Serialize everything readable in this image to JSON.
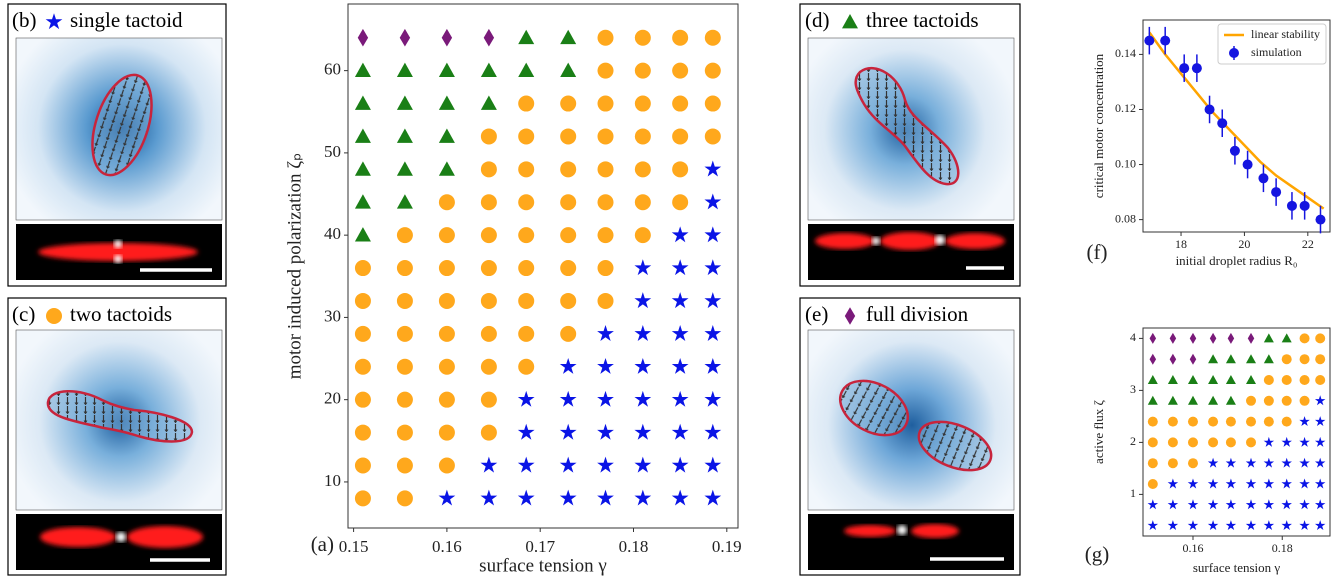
{
  "chart_data": [
    {
      "type": "phase",
      "panel_label": "(a)",
      "x_label": "surface tension γ",
      "y_label": "motor induced polarization ζₚ",
      "xlim": [
        0.1494,
        0.1912
      ],
      "ylim": [
        4.4,
        68.1
      ],
      "xticks": [
        0.15,
        0.16,
        0.17,
        0.18,
        0.19
      ],
      "yticks": [
        10,
        20,
        30,
        40,
        50,
        60
      ],
      "series": [
        {
          "name": "single tactoid",
          "color": "#0a14e6",
          "marker": "star",
          "x": [
            0.1885,
            0.1885,
            0.185,
            0.1885,
            0.181,
            0.185,
            0.1885,
            0.181,
            0.185,
            0.1885,
            0.177,
            0.181,
            0.185,
            0.1885,
            0.173,
            0.177,
            0.181,
            0.185,
            0.1885,
            0.1685,
            0.173,
            0.177,
            0.181,
            0.185,
            0.1885,
            0.1685,
            0.173,
            0.177,
            0.181,
            0.185,
            0.1885,
            0.1645,
            0.1685,
            0.173,
            0.177,
            0.181,
            0.185,
            0.1885,
            0.16,
            0.1645,
            0.1685,
            0.173,
            0.177,
            0.181,
            0.185,
            0.1885
          ],
          "y": [
            48,
            44,
            40,
            40,
            36,
            36,
            36,
            32,
            32,
            32,
            28,
            28,
            28,
            28,
            24,
            24,
            24,
            24,
            24,
            20,
            20,
            20,
            20,
            20,
            20,
            16,
            16,
            16,
            16,
            16,
            16,
            12,
            12,
            12,
            12,
            12,
            12,
            12,
            8,
            8,
            8,
            8,
            8,
            8,
            8,
            8
          ]
        },
        {
          "name": "two tactoids",
          "color": "#ffa81c",
          "marker": "circle",
          "x": [
            0.177,
            0.181,
            0.185,
            0.1885,
            0.177,
            0.181,
            0.185,
            0.1885,
            0.1685,
            0.173,
            0.177,
            0.181,
            0.185,
            0.1885,
            0.1645,
            0.1685,
            0.173,
            0.177,
            0.181,
            0.185,
            0.1885,
            0.1645,
            0.1685,
            0.173,
            0.177,
            0.181,
            0.185,
            0.16,
            0.1645,
            0.1685,
            0.173,
            0.177,
            0.181,
            0.185,
            0.1555,
            0.16,
            0.1645,
            0.1685,
            0.173,
            0.177,
            0.181,
            0.151,
            0.1555,
            0.16,
            0.1645,
            0.1685,
            0.173,
            0.177,
            0.151,
            0.1555,
            0.16,
            0.1645,
            0.1685,
            0.173,
            0.177,
            0.151,
            0.1555,
            0.16,
            0.1645,
            0.1685,
            0.173,
            0.151,
            0.1555,
            0.16,
            0.1645,
            0.1685,
            0.151,
            0.1555,
            0.16,
            0.1645,
            0.151,
            0.1555,
            0.16,
            0.1645,
            0.151,
            0.1555,
            0.16,
            0.151,
            0.1555
          ],
          "y": [
            64,
            64,
            64,
            64,
            60,
            60,
            60,
            60,
            56,
            56,
            56,
            56,
            56,
            56,
            52,
            52,
            52,
            52,
            52,
            52,
            52,
            48,
            48,
            48,
            48,
            48,
            48,
            44,
            44,
            44,
            44,
            44,
            44,
            44,
            40,
            40,
            40,
            40,
            40,
            40,
            40,
            36,
            36,
            36,
            36,
            36,
            36,
            36,
            32,
            32,
            32,
            32,
            32,
            32,
            32,
            28,
            28,
            28,
            28,
            28,
            28,
            24,
            24,
            24,
            24,
            24,
            20,
            20,
            20,
            20,
            16,
            16,
            16,
            16,
            12,
            12,
            12,
            8,
            8
          ]
        },
        {
          "name": "three tactoids",
          "color": "#1a7f16",
          "marker": "triangle",
          "x": [
            0.1685,
            0.173,
            0.151,
            0.1555,
            0.16,
            0.1645,
            0.1685,
            0.173,
            0.151,
            0.1555,
            0.16,
            0.1645,
            0.151,
            0.1555,
            0.16,
            0.151,
            0.1555,
            0.16,
            0.151,
            0.1555,
            0.151
          ],
          "y": [
            64,
            64,
            60,
            60,
            60,
            60,
            60,
            60,
            56,
            56,
            56,
            56,
            52,
            52,
            52,
            48,
            48,
            48,
            44,
            44,
            40
          ]
        },
        {
          "name": "full division",
          "color": "#7a1a7a",
          "marker": "diamond",
          "x": [
            0.151,
            0.1555,
            0.16,
            0.1645
          ],
          "y": [
            64,
            64,
            64,
            64
          ]
        }
      ]
    },
    {
      "type": "line_errorbar",
      "panel_label": "(f)",
      "x_label": "initial droplet radius R₀",
      "y_label": "critical motor concentration",
      "xlim": [
        16.8,
        22.7
      ],
      "ylim": [
        0.0755,
        0.1525
      ],
      "xticks": [
        18,
        20,
        22
      ],
      "yticks": [
        0.08,
        {
          "value": 0.1,
          "label": "0.10"
        },
        0.12,
        0.14
      ],
      "legend": "upper right",
      "series": [
        {
          "name": "linear stability",
          "color": "#ffa500",
          "x": [
            17,
            17.5,
            18,
            18.5,
            19,
            19.5,
            20,
            20.5,
            21,
            21.5,
            22,
            22.5
          ],
          "values": [
            0.148,
            0.14,
            0.133,
            0.126,
            0.119,
            0.113,
            0.107,
            0.101,
            0.096,
            0.092,
            0.088,
            0.084
          ]
        },
        {
          "name": "simulation",
          "color": "#1515e0",
          "x": [
            17.0,
            17.5,
            18.1,
            18.5,
            18.9,
            19.3,
            19.7,
            20.1,
            20.6,
            21.0,
            21.5,
            21.9,
            22.4
          ],
          "values": [
            0.145,
            0.145,
            0.135,
            0.135,
            0.12,
            0.115,
            0.105,
            0.1,
            0.095,
            0.09,
            0.085,
            0.085,
            0.08
          ],
          "errors": [
            0.005,
            0.005,
            0.005,
            0.005,
            0.005,
            0.005,
            0.005,
            0.005,
            0.005,
            0.005,
            0.005,
            0.005,
            0.005
          ]
        }
      ]
    },
    {
      "type": "phase",
      "panel_label": "(g)",
      "x_label": "surface tension γ",
      "y_label": "active flux ζ",
      "xlim": [
        0.1488,
        0.1907
      ],
      "ylim": [
        0.2,
        4.2
      ],
      "xticks": [
        0.16,
        0.18
      ],
      "yticks": [
        1,
        2,
        3,
        4
      ],
      "series": [
        {
          "color": "#0a14e6",
          "marker": "star",
          "x": [
            0.1885,
            0.185,
            0.1885,
            0.177,
            0.181,
            0.185,
            0.1885,
            0.1645,
            0.1685,
            0.173,
            0.177,
            0.181,
            0.185,
            0.1885,
            0.1555,
            0.16,
            0.1645,
            0.1685,
            0.173,
            0.177,
            0.181,
            0.185,
            0.1885,
            0.151,
            0.1555,
            0.16,
            0.1645,
            0.1685,
            0.173,
            0.177,
            0.181,
            0.185,
            0.1885,
            0.151,
            0.1555,
            0.16,
            0.1645,
            0.1685,
            0.173,
            0.177,
            0.181,
            0.185,
            0.1885
          ],
          "y": [
            2.8,
            2.4,
            2.4,
            2,
            2,
            2,
            2,
            1.6,
            1.6,
            1.6,
            1.6,
            1.6,
            1.6,
            1.6,
            1.2,
            1.2,
            1.2,
            1.2,
            1.2,
            1.2,
            1.2,
            1.2,
            1.2,
            0.8,
            0.8,
            0.8,
            0.8,
            0.8,
            0.8,
            0.8,
            0.8,
            0.8,
            0.8,
            0.4,
            0.4,
            0.4,
            0.4,
            0.4,
            0.4,
            0.4,
            0.4,
            0.4,
            0.4
          ]
        },
        {
          "color": "#ffa81c",
          "marker": "circle",
          "x": [
            0.185,
            0.1885,
            0.181,
            0.185,
            0.1885,
            0.177,
            0.181,
            0.185,
            0.1885,
            0.173,
            0.177,
            0.181,
            0.185,
            0.151,
            0.1555,
            0.16,
            0.1645,
            0.1685,
            0.173,
            0.177,
            0.181,
            0.151,
            0.1555,
            0.16,
            0.1645,
            0.1685,
            0.173,
            0.151,
            0.1555,
            0.16,
            0.151
          ],
          "y": [
            4,
            4,
            3.6,
            3.6,
            3.6,
            3.2,
            3.2,
            3.2,
            3.2,
            2.8,
            2.8,
            2.8,
            2.8,
            2.4,
            2.4,
            2.4,
            2.4,
            2.4,
            2.4,
            2.4,
            2.4,
            2,
            2,
            2,
            2,
            2,
            2,
            1.6,
            1.6,
            1.6,
            1.2
          ]
        },
        {
          "color": "#1a7f16",
          "marker": "triangle",
          "x": [
            0.177,
            0.181,
            0.1645,
            0.1685,
            0.173,
            0.177,
            0.151,
            0.1555,
            0.16,
            0.1645,
            0.1685,
            0.173,
            0.151,
            0.1555,
            0.16,
            0.1645,
            0.1685
          ],
          "y": [
            4,
            4,
            3.6,
            3.6,
            3.6,
            3.6,
            3.2,
            3.2,
            3.2,
            3.2,
            3.2,
            3.2,
            2.8,
            2.8,
            2.8,
            2.8,
            2.8
          ]
        },
        {
          "color": "#7a1a7a",
          "marker": "diamond",
          "x": [
            0.151,
            0.1555,
            0.16,
            0.1645,
            0.1685,
            0.173,
            0.151,
            0.1555,
            0.16
          ],
          "y": [
            4,
            4,
            4,
            4,
            4,
            4,
            3.6,
            3.6,
            3.6
          ]
        }
      ]
    }
  ],
  "image_panels": [
    {
      "label": "(b)"
    },
    {
      "label": "(c)"
    },
    {
      "label": "(d)"
    },
    {
      "label": "(e)"
    }
  ]
}
